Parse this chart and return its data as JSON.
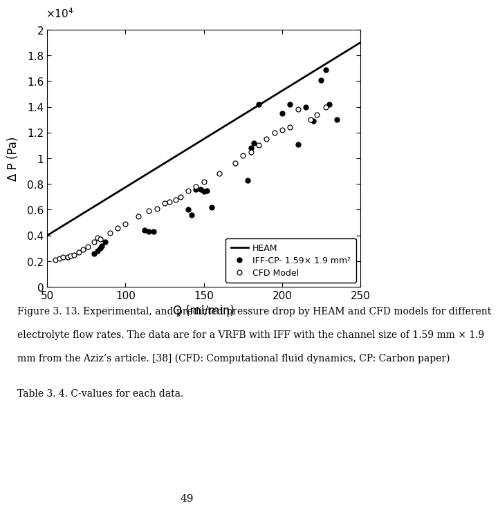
{
  "heam_line": {
    "x": [
      50,
      250
    ],
    "y": [
      4000,
      19000
    ],
    "color": "black",
    "linewidth": 2.0,
    "label": "HEAM"
  },
  "iff_cp_x": [
    80,
    82,
    84,
    85,
    87,
    112,
    115,
    118,
    140,
    142,
    145,
    148,
    150,
    152,
    155,
    178,
    180,
    182,
    185,
    200,
    205,
    210,
    215,
    220,
    225,
    228,
    230,
    235
  ],
  "iff_cp_y": [
    2600,
    2800,
    3000,
    3200,
    3500,
    4400,
    4300,
    4300,
    6000,
    5600,
    7600,
    7600,
    7400,
    7500,
    6200,
    8300,
    10800,
    11200,
    14200,
    13500,
    14200,
    11100,
    14000,
    12900,
    16100,
    16900,
    14200,
    13000
  ],
  "cfd_x": [
    55,
    58,
    60,
    63,
    65,
    67,
    70,
    73,
    76,
    80,
    82,
    84,
    90,
    95,
    100,
    108,
    115,
    120,
    125,
    128,
    132,
    135,
    140,
    145,
    150,
    160,
    170,
    175,
    180,
    185,
    190,
    195,
    200,
    205,
    210,
    218,
    222,
    228
  ],
  "cfd_y": [
    2100,
    2200,
    2300,
    2300,
    2400,
    2500,
    2700,
    2900,
    3100,
    3500,
    3800,
    3700,
    4200,
    4600,
    4900,
    5500,
    5900,
    6100,
    6500,
    6600,
    6800,
    7000,
    7500,
    7800,
    8200,
    8800,
    9600,
    10200,
    10500,
    11000,
    11500,
    12000,
    12200,
    12400,
    13800,
    13000,
    13400,
    14000
  ],
  "xlabel": "Q (ml/min)",
  "ylabel": "Δ P (Pa)",
  "xlim": [
    50,
    250
  ],
  "ylim": [
    0,
    20000
  ],
  "xticks": [
    50,
    100,
    150,
    200,
    250
  ],
  "ytick_vals": [
    0,
    2000,
    4000,
    6000,
    8000,
    10000,
    12000,
    14000,
    16000,
    18000,
    20000
  ],
  "ytick_labels": [
    "0",
    "0.2",
    "0.4",
    "0.6",
    "0.8",
    "1",
    "1.2",
    "1.4",
    "1.6",
    "1.8",
    "2"
  ],
  "legend_label_heam": "HEAM",
  "legend_label_iff": "IFF-CP- 1.59× 1.9 mm²",
  "legend_label_cfd": "CFD Model",
  "caption_line1": "Figure 3. 13. Experimental, and predicted pressure drop by HEAM and CFD models for different",
  "caption_line2": "electrolyte flow rates. The data are for a VRFB with IFF with the channel size of 1.59 mm × 1.9",
  "caption_line3": "mm from the Aziz’s article. [38] (CFD: Computational fluid dynamics, CP: Carbon paper)",
  "caption_line4": "Table 3. 4. C-values for each data.",
  "page_number": "49"
}
